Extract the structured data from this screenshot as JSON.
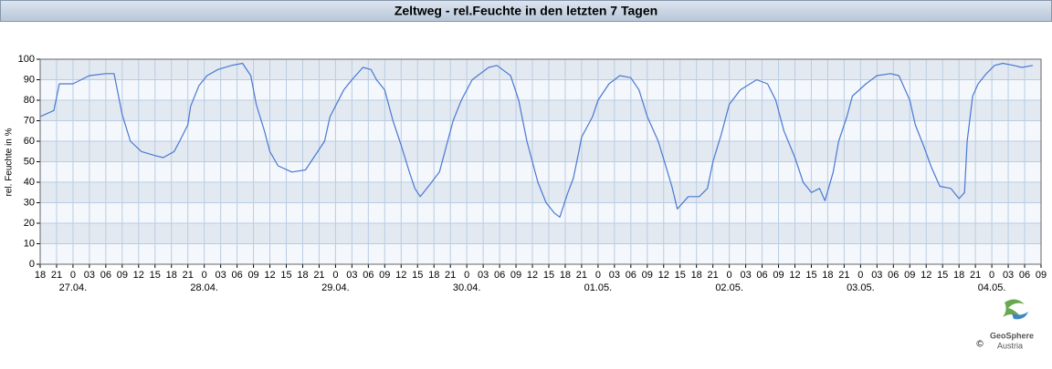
{
  "chart_data": {
    "type": "line",
    "title": "Zeltweg - rel.Feuchte in den letzten 7 Tagen",
    "ylabel": "rel. Feuchte in %",
    "color": "#4a78d4",
    "grid": true,
    "x": [
      0,
      2.5,
      3.5,
      6,
      9,
      12,
      13.5,
      15,
      16.5,
      18.5,
      21,
      22.5,
      24.5,
      25.5,
      27,
      27.5,
      29,
      30.5,
      32.5,
      35,
      37,
      38.5,
      39.5,
      41,
      42,
      43.5,
      46,
      48.5,
      50,
      52,
      53,
      55.5,
      57,
      59,
      60.5,
      61.5,
      63,
      64.5,
      66,
      67.5,
      68.5,
      69.5,
      71,
      73,
      74,
      75.5,
      77,
      79,
      82,
      83.5,
      86,
      87.5,
      89,
      91,
      92.5,
      94,
      95,
      96.5,
      97.5,
      98.5,
      99,
      101,
      102,
      104,
      106,
      108,
      109.5,
      111,
      113,
      114.5,
      115.5,
      116.5,
      118.5,
      120.5,
      122,
      123,
      124.5,
      126,
      128,
      131,
      133,
      134.5,
      136,
      138,
      139.5,
      141,
      142.5,
      143.5,
      145,
      146,
      147.5,
      148.5,
      151,
      153,
      155.5,
      157,
      159,
      160,
      161.5,
      163,
      164.5,
      166.5,
      168,
      169,
      169.5,
      170.5,
      171.5,
      173,
      174.5,
      176,
      178,
      179.5,
      181.5
    ],
    "values": [
      72,
      75,
      88,
      88,
      92,
      93,
      93,
      73,
      60,
      55,
      53,
      52,
      55,
      60,
      68,
      77,
      87,
      92,
      95,
      97,
      98,
      92,
      78,
      65,
      55,
      48,
      45,
      46,
      52,
      60,
      72,
      85,
      90,
      96,
      95,
      90,
      85,
      70,
      58,
      45,
      37,
      33,
      38,
      45,
      55,
      70,
      80,
      90,
      96,
      97,
      92,
      80,
      60,
      40,
      30,
      25,
      23,
      35,
      42,
      55,
      62,
      72,
      80,
      88,
      92,
      91,
      85,
      72,
      60,
      47,
      38,
      27,
      33,
      33,
      37,
      50,
      63,
      78,
      85,
      90,
      88,
      80,
      65,
      52,
      40,
      35,
      37,
      31,
      45,
      60,
      72,
      82,
      88,
      92,
      93,
      92,
      80,
      68,
      58,
      47,
      38,
      37,
      32,
      35,
      60,
      82,
      88,
      93,
      97,
      98,
      97,
      96,
      97
    ],
    "xlim": [
      0,
      183
    ],
    "xticks": [
      {
        "value": 0,
        "label": "18"
      },
      {
        "value": 3,
        "label": "21"
      },
      {
        "value": 6,
        "label": "0"
      },
      {
        "value": 9,
        "label": "03"
      },
      {
        "value": 12,
        "label": "06"
      },
      {
        "value": 15,
        "label": "09"
      },
      {
        "value": 18,
        "label": "12"
      },
      {
        "value": 21,
        "label": "15"
      },
      {
        "value": 24,
        "label": "18"
      },
      {
        "value": 27,
        "label": "21"
      },
      {
        "value": 30,
        "label": "0"
      },
      {
        "value": 33,
        "label": "03"
      },
      {
        "value": 36,
        "label": "06"
      },
      {
        "value": 39,
        "label": "09"
      },
      {
        "value": 42,
        "label": "12"
      },
      {
        "value": 45,
        "label": "15"
      },
      {
        "value": 48,
        "label": "18"
      },
      {
        "value": 51,
        "label": "21"
      },
      {
        "value": 54,
        "label": "0"
      },
      {
        "value": 57,
        "label": "03"
      },
      {
        "value": 60,
        "label": "06"
      },
      {
        "value": 63,
        "label": "09"
      },
      {
        "value": 66,
        "label": "12"
      },
      {
        "value": 69,
        "label": "15"
      },
      {
        "value": 72,
        "label": "18"
      },
      {
        "value": 75,
        "label": "21"
      },
      {
        "value": 78,
        "label": "0"
      },
      {
        "value": 81,
        "label": "03"
      },
      {
        "value": 84,
        "label": "06"
      },
      {
        "value": 87,
        "label": "09"
      },
      {
        "value": 90,
        "label": "12"
      },
      {
        "value": 93,
        "label": "15"
      },
      {
        "value": 96,
        "label": "18"
      },
      {
        "value": 99,
        "label": "21"
      },
      {
        "value": 102,
        "label": "0"
      },
      {
        "value": 105,
        "label": "03"
      },
      {
        "value": 108,
        "label": "06"
      },
      {
        "value": 111,
        "label": "09"
      },
      {
        "value": 114,
        "label": "12"
      },
      {
        "value": 117,
        "label": "15"
      },
      {
        "value": 120,
        "label": "18"
      },
      {
        "value": 123,
        "label": "21"
      },
      {
        "value": 126,
        "label": "0"
      },
      {
        "value": 129,
        "label": "03"
      },
      {
        "value": 132,
        "label": "06"
      },
      {
        "value": 135,
        "label": "09"
      },
      {
        "value": 138,
        "label": "12"
      },
      {
        "value": 141,
        "label": "15"
      },
      {
        "value": 144,
        "label": "18"
      },
      {
        "value": 147,
        "label": "21"
      },
      {
        "value": 150,
        "label": "0"
      },
      {
        "value": 153,
        "label": "03"
      },
      {
        "value": 156,
        "label": "06"
      },
      {
        "value": 159,
        "label": "09"
      },
      {
        "value": 162,
        "label": "12"
      },
      {
        "value": 165,
        "label": "15"
      },
      {
        "value": 168,
        "label": "18"
      },
      {
        "value": 171,
        "label": "21"
      },
      {
        "value": 174,
        "label": "0"
      },
      {
        "value": 177,
        "label": "03"
      },
      {
        "value": 180,
        "label": "06"
      },
      {
        "value": 183,
        "label": "09"
      }
    ],
    "day_labels": [
      {
        "value": 6,
        "label": "27.04."
      },
      {
        "value": 30,
        "label": "28.04."
      },
      {
        "value": 54,
        "label": "29.04."
      },
      {
        "value": 78,
        "label": "30.04."
      },
      {
        "value": 102,
        "label": "01.05."
      },
      {
        "value": 126,
        "label": "02.05."
      },
      {
        "value": 150,
        "label": "03.05."
      },
      {
        "value": 174,
        "label": "04.05."
      }
    ],
    "ylim": [
      0,
      100
    ],
    "yticks": [
      0,
      10,
      20,
      30,
      40,
      50,
      60,
      70,
      80,
      90,
      100
    ],
    "logo": {
      "name": "GeoSphere",
      "sub": "Austria",
      "copyright": "©"
    }
  }
}
